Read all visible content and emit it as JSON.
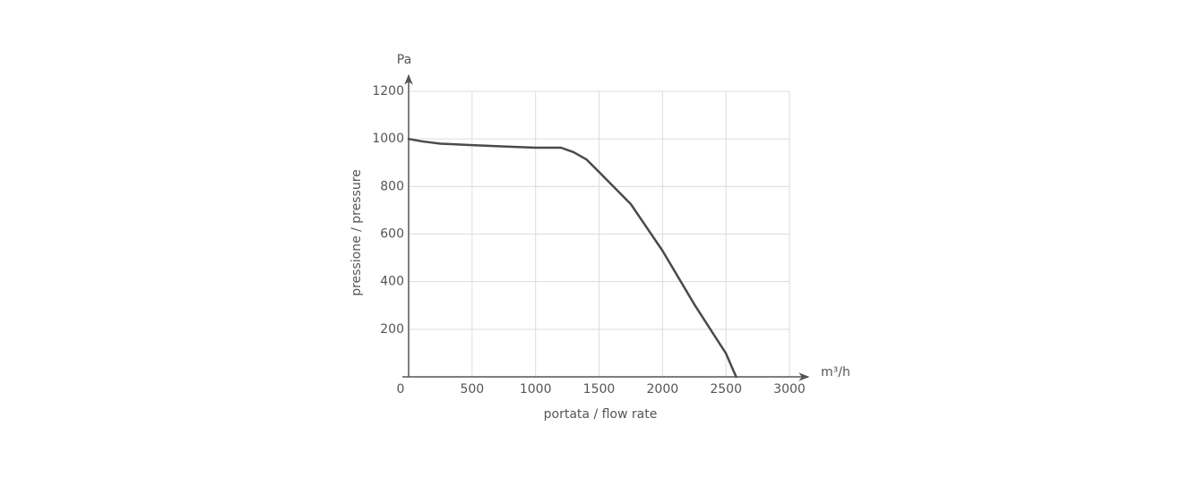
{
  "chart_data": {
    "type": "line",
    "x_unit": "m³/h",
    "y_unit": "Pa",
    "x_label": "portata / flow rate",
    "y_label": "pressione / pressure",
    "x": [
      0,
      100,
      250,
      500,
      750,
      1000,
      1200,
      1300,
      1400,
      1500,
      1750,
      2000,
      2250,
      2500,
      2580
    ],
    "values": [
      1000,
      990,
      980,
      974,
      968,
      963,
      963,
      944,
      914,
      861,
      726,
      530,
      305,
      98,
      0
    ],
    "color": "#4a4a4a",
    "xlim": [
      0,
      3000
    ],
    "ylim": [
      0,
      1200
    ],
    "xticks": [
      0,
      500,
      1000,
      1500,
      2000,
      2500,
      3000
    ],
    "yticks": [
      200,
      400,
      600,
      800,
      1000,
      1200
    ],
    "grid": true
  }
}
